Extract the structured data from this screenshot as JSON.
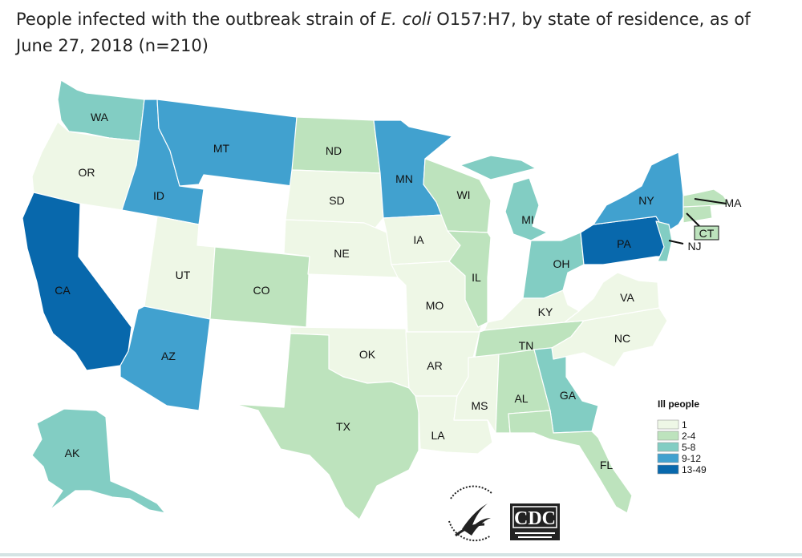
{
  "title": {
    "before": "People infected with the outbreak strain of ",
    "italic": "E. coli",
    "after": " O157:H7, by state of residence, as of June 27, 2018 (n=210)"
  },
  "legend": {
    "title": "Ill people",
    "bins": [
      {
        "label": "1",
        "color": "#eef7e6"
      },
      {
        "label": "2-4",
        "color": "#bde3bd"
      },
      {
        "label": "5-8",
        "color": "#82cdc3"
      },
      {
        "label": "9-12",
        "color": "#41a1cf"
      },
      {
        "label": "13-49",
        "color": "#0868ac"
      }
    ]
  },
  "colors": {
    "none": "#ffffff",
    "no_data_border": "#bbbbbb",
    "bin_1": "#eef7e6",
    "bin_2_4": "#bde3bd",
    "bin_5_8": "#82cdc3",
    "bin_9_12": "#41a1cf",
    "bin_13_49": "#0868ac"
  },
  "states": [
    {
      "abbr": "WA",
      "bin": "5-8"
    },
    {
      "abbr": "OR",
      "bin": "1"
    },
    {
      "abbr": "CA",
      "bin": "13-49"
    },
    {
      "abbr": "ID",
      "bin": "9-12"
    },
    {
      "abbr": "MT",
      "bin": "9-12"
    },
    {
      "abbr": "UT",
      "bin": "1"
    },
    {
      "abbr": "AZ",
      "bin": "9-12"
    },
    {
      "abbr": "CO",
      "bin": "2-4"
    },
    {
      "abbr": "ND",
      "bin": "2-4"
    },
    {
      "abbr": "SD",
      "bin": "1"
    },
    {
      "abbr": "NE",
      "bin": "1"
    },
    {
      "abbr": "OK",
      "bin": "1"
    },
    {
      "abbr": "TX",
      "bin": "2-4"
    },
    {
      "abbr": "MN",
      "bin": "9-12"
    },
    {
      "abbr": "IA",
      "bin": "1"
    },
    {
      "abbr": "MO",
      "bin": "1"
    },
    {
      "abbr": "AR",
      "bin": "1"
    },
    {
      "abbr": "LA",
      "bin": "1"
    },
    {
      "abbr": "WI",
      "bin": "2-4"
    },
    {
      "abbr": "IL",
      "bin": "2-4"
    },
    {
      "abbr": "MI",
      "bin": "5-8"
    },
    {
      "abbr": "OH",
      "bin": "5-8"
    },
    {
      "abbr": "KY",
      "bin": "1"
    },
    {
      "abbr": "TN",
      "bin": "2-4"
    },
    {
      "abbr": "MS",
      "bin": "1"
    },
    {
      "abbr": "AL",
      "bin": "2-4"
    },
    {
      "abbr": "GA",
      "bin": "5-8"
    },
    {
      "abbr": "FL",
      "bin": "2-4"
    },
    {
      "abbr": "NC",
      "bin": "1"
    },
    {
      "abbr": "VA",
      "bin": "1"
    },
    {
      "abbr": "PA",
      "bin": "13-49"
    },
    {
      "abbr": "NY",
      "bin": "9-12"
    },
    {
      "abbr": "NJ",
      "bin": "5-8"
    },
    {
      "abbr": "CT",
      "bin": "2-4"
    },
    {
      "abbr": "MA",
      "bin": "2-4"
    },
    {
      "abbr": "AK",
      "bin": "5-8"
    }
  ],
  "logos": {
    "cdc_text": "CDC",
    "hhs_icon": "hhs-eagle-seal-icon"
  }
}
